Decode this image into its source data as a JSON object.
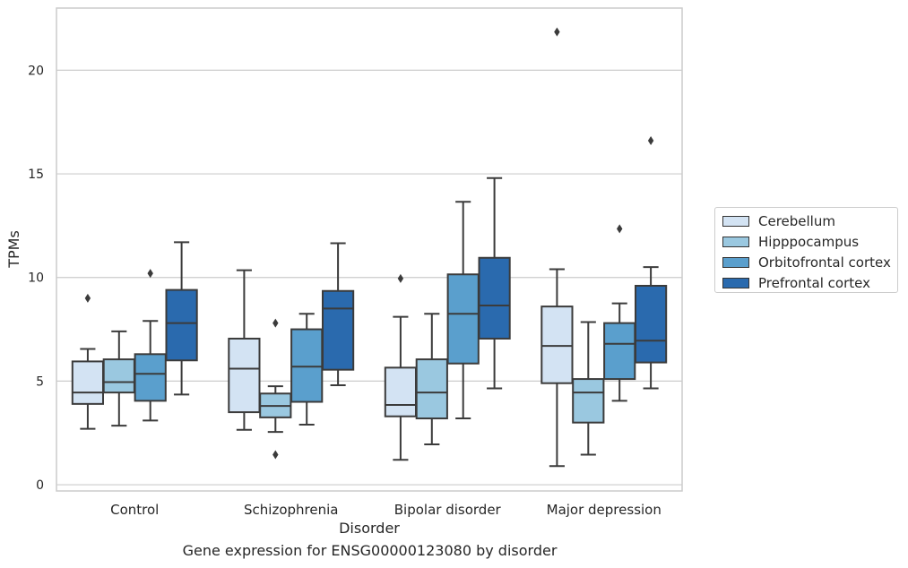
{
  "caption": "Gene expression for ENSG00000123080 by disorder",
  "chart_data": {
    "type": "box",
    "xlabel": "Disorder",
    "ylabel": "TPMs",
    "ylim": [
      -0.3,
      23
    ],
    "yticks": [
      0,
      5,
      10,
      15,
      20
    ],
    "grid": "horizontal",
    "legend_position": "right",
    "categories": [
      "Control",
      "Schizophrenia",
      "Bipolar disorder",
      "Major depression"
    ],
    "series": [
      {
        "name": "Cerebellum",
        "color": "#d3e3f3",
        "boxes": [
          {
            "whisker_low": 2.7,
            "q1": 3.9,
            "median": 4.45,
            "q3": 5.95,
            "whisker_high": 6.55,
            "outliers": [
              9.0
            ]
          },
          {
            "whisker_low": 2.65,
            "q1": 3.5,
            "median": 5.6,
            "q3": 7.05,
            "whisker_high": 10.35,
            "outliers": []
          },
          {
            "whisker_low": 1.2,
            "q1": 3.3,
            "median": 3.85,
            "q3": 5.65,
            "whisker_high": 8.1,
            "outliers": [
              9.95
            ]
          },
          {
            "whisker_low": 0.9,
            "q1": 4.9,
            "median": 6.7,
            "q3": 8.6,
            "whisker_high": 10.4,
            "outliers": [
              21.85
            ]
          }
        ]
      },
      {
        "name": "Hipppocampus",
        "color": "#9ac8e0",
        "boxes": [
          {
            "whisker_low": 2.85,
            "q1": 4.45,
            "median": 4.95,
            "q3": 6.05,
            "whisker_high": 7.4,
            "outliers": []
          },
          {
            "whisker_low": 2.55,
            "q1": 3.25,
            "median": 3.8,
            "q3": 4.4,
            "whisker_high": 4.75,
            "outliers": [
              7.8,
              1.45
            ]
          },
          {
            "whisker_low": 1.95,
            "q1": 3.2,
            "median": 4.45,
            "q3": 6.05,
            "whisker_high": 8.25,
            "outliers": []
          },
          {
            "whisker_low": 1.45,
            "q1": 3.0,
            "median": 4.45,
            "q3": 5.1,
            "whisker_high": 7.85,
            "outliers": []
          }
        ]
      },
      {
        "name": "Orbitofrontal cortex",
        "color": "#5a9fcd",
        "boxes": [
          {
            "whisker_low": 3.1,
            "q1": 4.05,
            "median": 5.35,
            "q3": 6.3,
            "whisker_high": 7.9,
            "outliers": [
              10.2
            ]
          },
          {
            "whisker_low": 2.9,
            "q1": 4.0,
            "median": 5.7,
            "q3": 7.5,
            "whisker_high": 8.25,
            "outliers": []
          },
          {
            "whisker_low": 3.2,
            "q1": 5.85,
            "median": 8.25,
            "q3": 10.15,
            "whisker_high": 13.65,
            "outliers": []
          },
          {
            "whisker_low": 4.05,
            "q1": 5.1,
            "median": 6.8,
            "q3": 7.8,
            "whisker_high": 8.75,
            "outliers": [
              12.35
            ]
          }
        ]
      },
      {
        "name": "Prefrontal cortex",
        "color": "#2a6aae",
        "boxes": [
          {
            "whisker_low": 4.35,
            "q1": 6.0,
            "median": 7.8,
            "q3": 9.4,
            "whisker_high": 11.7,
            "outliers": []
          },
          {
            "whisker_low": 4.8,
            "q1": 5.55,
            "median": 8.5,
            "q3": 9.35,
            "whisker_high": 11.65,
            "outliers": []
          },
          {
            "whisker_low": 4.65,
            "q1": 7.05,
            "median": 8.65,
            "q3": 10.95,
            "whisker_high": 14.8,
            "outliers": []
          },
          {
            "whisker_low": 4.65,
            "q1": 5.9,
            "median": 6.95,
            "q3": 9.6,
            "whisker_high": 10.5,
            "outliers": [
              16.6
            ]
          }
        ]
      }
    ]
  }
}
